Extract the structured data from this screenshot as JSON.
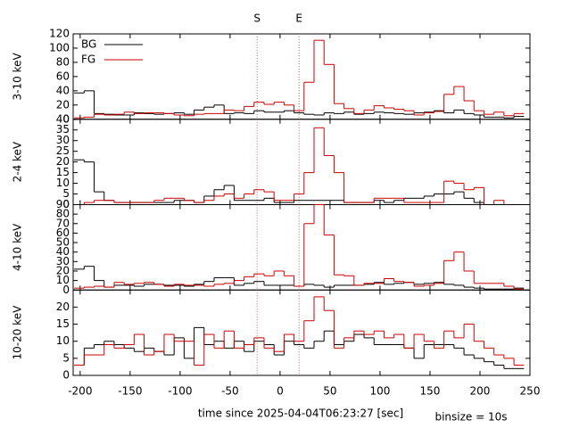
{
  "xlabel": "time since 2025-04-04T06:23:27 [sec]",
  "note": "binsize = 10s",
  "markers": [
    {
      "x": -23,
      "label": "S"
    },
    {
      "x": 19,
      "label": "E"
    }
  ],
  "xlim": [
    -207,
    250
  ],
  "xticks": [
    -200,
    -150,
    -100,
    -50,
    0,
    50,
    100,
    150,
    200,
    250
  ],
  "bins": [
    -206,
    -196,
    -186,
    -176,
    -166,
    -156,
    -146,
    -136,
    -126,
    -116,
    -106,
    -96,
    -86,
    -76,
    -66,
    -56,
    -46,
    -36,
    -26,
    -16,
    -6,
    4,
    14,
    24,
    34,
    44,
    54,
    64,
    74,
    84,
    94,
    104,
    114,
    124,
    134,
    144,
    154,
    164,
    174,
    184,
    194,
    204,
    214,
    224,
    234,
    244
  ],
  "chart_data": [
    {
      "type": "histogram",
      "ylabel": "3-10 keV",
      "ylim": [
        0,
        120
      ],
      "yticks": [
        0,
        20,
        40,
        60,
        80,
        100,
        120
      ],
      "legend": "upper left",
      "series": [
        {
          "name": "BG",
          "color": "#000000",
          "values": [
            37,
            40,
            8,
            7,
            6,
            6,
            9,
            8,
            7,
            8,
            9,
            7,
            13,
            17,
            20,
            8,
            9,
            8,
            12,
            10,
            10,
            12,
            9,
            7,
            6,
            9,
            8,
            10,
            7,
            8,
            10,
            9,
            8,
            7,
            9,
            10,
            12,
            9,
            13,
            8,
            6,
            3,
            3,
            2,
            4
          ]
        },
        {
          "name": "FG",
          "color": "#cc0000",
          "values": [
            2,
            3,
            7,
            6,
            7,
            10,
            8,
            9,
            9,
            8,
            6,
            5,
            7,
            8,
            8,
            13,
            12,
            18,
            24,
            21,
            24,
            20,
            12,
            52,
            111,
            77,
            22,
            15,
            8,
            13,
            19,
            16,
            14,
            12,
            6,
            9,
            11,
            35,
            46,
            26,
            12,
            7,
            10,
            5,
            8
          ]
        }
      ]
    },
    {
      "type": "histogram",
      "ylabel": "2-4 keV",
      "ylim": [
        0,
        40
      ],
      "yticks": [
        0,
        5,
        10,
        15,
        20,
        25,
        30,
        35,
        40
      ],
      "series": [
        {
          "name": "BG",
          "color": "#000000",
          "values": [
            21,
            20,
            6,
            2,
            1,
            1,
            1,
            1,
            1,
            1,
            2,
            2,
            1,
            4,
            7,
            9,
            2,
            2,
            2,
            3,
            1,
            1,
            2,
            2,
            2,
            2,
            2,
            1,
            1,
            1,
            2,
            1,
            2,
            3,
            3,
            4,
            5,
            5,
            6,
            3,
            1,
            0,
            0,
            0,
            0
          ]
        },
        {
          "name": "FG",
          "color": "#cc0000",
          "values": [
            0,
            1,
            2,
            2,
            1,
            1,
            1,
            1,
            2,
            3,
            3,
            2,
            1,
            2,
            4,
            5,
            3,
            5,
            7,
            6,
            2,
            2,
            5,
            15,
            36,
            23,
            15,
            1,
            1,
            1,
            3,
            3,
            3,
            1,
            1,
            1,
            1,
            11,
            10,
            7,
            8,
            0,
            2,
            0,
            0
          ]
        }
      ]
    },
    {
      "type": "histogram",
      "ylabel": "4-10 keV",
      "ylim": [
        0,
        90
      ],
      "yticks": [
        0,
        10,
        20,
        30,
        40,
        50,
        60,
        70,
        80,
        90
      ],
      "series": [
        {
          "name": "BG",
          "color": "#000000",
          "values": [
            22,
            25,
            10,
            3,
            5,
            5,
            4,
            6,
            6,
            5,
            5,
            4,
            6,
            9,
            13,
            13,
            5,
            7,
            9,
            5,
            5,
            5,
            4,
            6,
            5,
            3,
            5,
            5,
            5,
            6,
            8,
            6,
            7,
            8,
            6,
            7,
            8,
            6,
            5,
            3,
            2,
            1,
            1,
            1,
            2
          ]
        },
        {
          "name": "FG",
          "color": "#cc0000",
          "values": [
            2,
            3,
            4,
            3,
            8,
            6,
            7,
            8,
            6,
            4,
            6,
            5,
            5,
            4,
            6,
            7,
            10,
            14,
            17,
            15,
            20,
            15,
            4,
            70,
            90,
            58,
            16,
            15,
            5,
            7,
            7,
            12,
            9,
            8,
            4,
            5,
            7,
            31,
            40,
            20,
            7,
            7,
            7,
            4,
            1
          ]
        }
      ]
    },
    {
      "type": "histogram",
      "ylabel": "10-20 keV",
      "ylim": [
        0,
        25
      ],
      "yticks": [
        0,
        5,
        10,
        15,
        20
      ],
      "series": [
        {
          "name": "BG",
          "color": "#000000",
          "values": [
            3,
            8,
            9,
            10,
            9,
            8,
            7,
            8,
            7,
            6,
            11,
            5,
            14,
            9,
            10,
            8,
            10,
            7,
            10,
            9,
            6,
            10,
            9,
            8,
            10,
            13,
            9,
            10,
            12,
            11,
            9,
            9,
            9,
            8,
            5,
            9,
            9,
            9,
            8,
            6,
            5,
            4,
            3,
            2,
            2
          ]
        },
        {
          "name": "FG",
          "color": "#cc0000",
          "values": [
            3,
            6,
            6,
            9,
            8,
            9,
            12,
            6,
            7,
            12,
            10,
            10,
            3,
            12,
            8,
            13,
            8,
            9,
            11,
            8,
            7,
            12,
            10,
            16,
            23,
            19,
            8,
            11,
            13,
            12,
            13,
            11,
            12,
            8,
            12,
            10,
            8,
            13,
            11,
            15,
            10,
            8,
            6,
            5,
            3
          ]
        }
      ]
    }
  ]
}
